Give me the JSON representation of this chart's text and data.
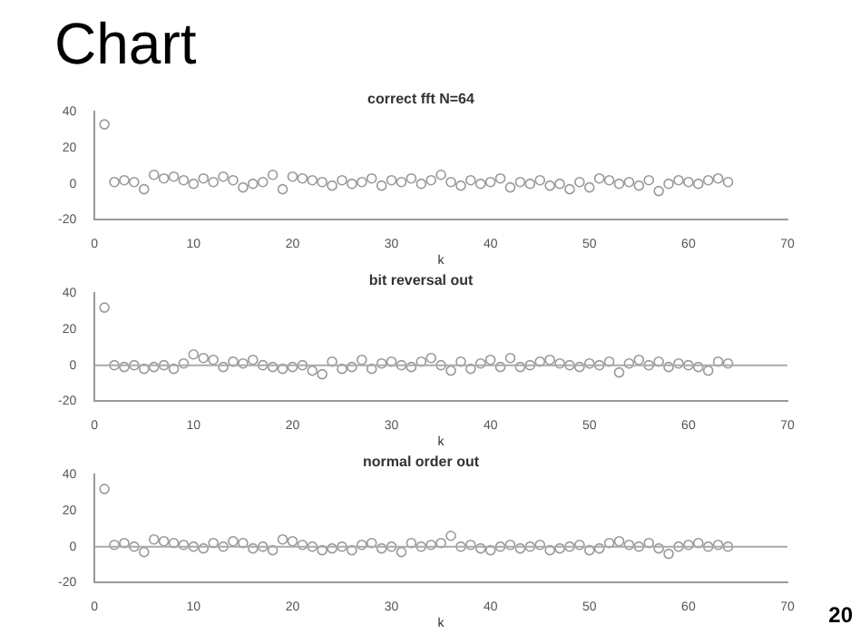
{
  "chart_data": [
    {
      "type": "scatter",
      "title": "correct fft N=64",
      "xlabel": "k",
      "annotations": [
        "Chart"
      ],
      "x": [
        1,
        2,
        3,
        4,
        5,
        6,
        7,
        8,
        9,
        10,
        11,
        12,
        13,
        14,
        15,
        16,
        17,
        18,
        19,
        20,
        21,
        22,
        23,
        24,
        25,
        26,
        27,
        28,
        29,
        30,
        31,
        32,
        33,
        34,
        35,
        36,
        37,
        38,
        39,
        40,
        41,
        42,
        43,
        44,
        45,
        46,
        47,
        48,
        49,
        50,
        51,
        52,
        53,
        54,
        55,
        56,
        57,
        58,
        59,
        60,
        61,
        62,
        63,
        64
      ],
      "series": [
        {
          "color": "#999999",
          "values": [
            33,
            1,
            2,
            1,
            -3,
            5,
            3,
            4,
            2,
            0,
            3,
            1,
            4,
            2,
            -2,
            0,
            1,
            5,
            -3,
            4,
            3,
            2,
            1,
            -1,
            2,
            0,
            1,
            3,
            -1,
            2,
            1,
            3,
            0,
            2,
            5,
            1,
            -1,
            2,
            0,
            1,
            3,
            -2,
            1,
            0,
            2,
            -1,
            0,
            -3,
            1,
            -2,
            3,
            2,
            0,
            1,
            -1,
            2,
            -4,
            0,
            2,
            1,
            0,
            2,
            3,
            1
          ]
        }
      ],
      "xlim": [
        0,
        70
      ],
      "xticks": [
        0,
        10,
        20,
        30,
        40,
        50,
        60,
        70
      ],
      "ylim": [
        -20,
        40
      ],
      "yticks": [
        -20,
        0,
        20,
        40
      ],
      "marker": "circle",
      "grid": false
    },
    {
      "type": "scatter",
      "title": "bit reversal out",
      "xlabel": "k",
      "x": [
        1,
        2,
        3,
        4,
        5,
        6,
        7,
        8,
        9,
        10,
        11,
        12,
        13,
        14,
        15,
        16,
        17,
        18,
        19,
        20,
        21,
        22,
        23,
        24,
        25,
        26,
        27,
        28,
        29,
        30,
        31,
        32,
        33,
        34,
        35,
        36,
        37,
        38,
        39,
        40,
        41,
        42,
        43,
        44,
        45,
        46,
        47,
        48,
        49,
        50,
        51,
        52,
        53,
        54,
        55,
        56,
        57,
        58,
        59,
        60,
        61,
        62,
        63,
        64
      ],
      "series": [
        {
          "color": "#999999",
          "values": [
            32,
            0,
            -1,
            0,
            -2,
            -1,
            0,
            -2,
            1,
            6,
            4,
            3,
            -1,
            2,
            1,
            3,
            0,
            -1,
            -2,
            -1,
            0,
            -3,
            -5,
            2,
            -2,
            -1,
            3,
            -2,
            1,
            2,
            0,
            -1,
            2,
            4,
            0,
            -3,
            2,
            -2,
            1,
            3,
            -1,
            4,
            -1,
            0,
            2,
            3,
            1,
            0,
            -1,
            1,
            0,
            2,
            -4,
            1,
            3,
            0,
            2,
            -1,
            1,
            0,
            -1,
            -3,
            2,
            1
          ]
        }
      ],
      "xlim": [
        0,
        70
      ],
      "xticks": [
        0,
        10,
        20,
        30,
        40,
        50,
        60,
        70
      ],
      "ylim": [
        -20,
        40
      ],
      "yticks": [
        -20,
        0,
        20,
        40
      ],
      "marker": "circle",
      "grid": false,
      "ref_lines": [
        {
          "axis": "y",
          "value": 0,
          "color": "#aaaaaa"
        }
      ]
    },
    {
      "type": "scatter",
      "title": "normal order out",
      "xlabel": "k",
      "annotations": [
        "20"
      ],
      "x": [
        1,
        2,
        3,
        4,
        5,
        6,
        7,
        8,
        9,
        10,
        11,
        12,
        13,
        14,
        15,
        16,
        17,
        18,
        19,
        20,
        21,
        22,
        23,
        24,
        25,
        26,
        27,
        28,
        29,
        30,
        31,
        32,
        33,
        34,
        35,
        36,
        37,
        38,
        39,
        40,
        41,
        42,
        43,
        44,
        45,
        46,
        47,
        48,
        49,
        50,
        51,
        52,
        53,
        54,
        55,
        56,
        57,
        58,
        59,
        60,
        61,
        62,
        63,
        64
      ],
      "series": [
        {
          "color": "#999999",
          "values": [
            32,
            1,
            2,
            0,
            -3,
            4,
            3,
            2,
            1,
            0,
            -1,
            2,
            0,
            3,
            2,
            -1,
            0,
            -2,
            4,
            3,
            1,
            0,
            -2,
            -1,
            0,
            -2,
            1,
            2,
            -1,
            0,
            -3,
            2,
            0,
            1,
            2,
            6,
            0,
            1,
            -1,
            -2,
            0,
            1,
            -1,
            0,
            1,
            -2,
            -1,
            0,
            1,
            -2,
            -1,
            2,
            3,
            1,
            0,
            2,
            -1,
            -4,
            0,
            1,
            2,
            0,
            1,
            0
          ]
        }
      ],
      "xlim": [
        0,
        70
      ],
      "xticks": [
        0,
        10,
        20,
        30,
        40,
        50,
        60,
        70
      ],
      "ylim": [
        -20,
        40
      ],
      "yticks": [
        -20,
        0,
        20,
        40
      ],
      "marker": "circle",
      "grid": false,
      "ref_lines": [
        {
          "axis": "y",
          "value": 0,
          "color": "#aaaaaa"
        }
      ]
    }
  ]
}
